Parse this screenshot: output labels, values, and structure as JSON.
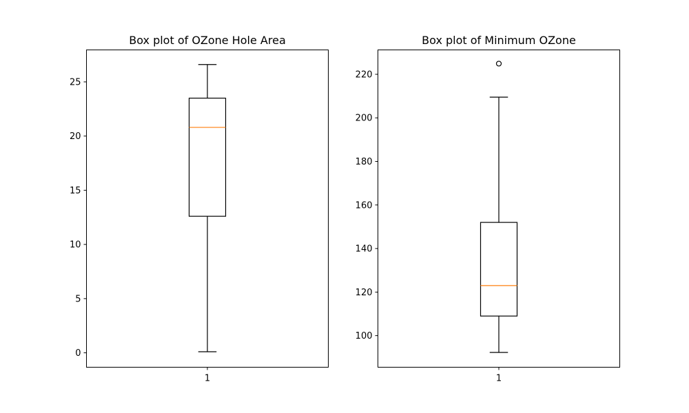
{
  "colors": {
    "median": "#ff7f0e",
    "box": "#000000",
    "flier": "#000000"
  },
  "chart_data": [
    {
      "type": "box",
      "title": "Box plot of OZone Hole Area",
      "xlabel": "",
      "ylabel": "",
      "categories": [
        "1"
      ],
      "ylim": [
        -1.33,
        27.95
      ],
      "yticks": [
        0,
        5,
        10,
        15,
        20,
        25
      ],
      "boxes": [
        {
          "category": "1",
          "whisker_low": 0.1,
          "q1": 12.6,
          "median": 20.8,
          "q3": 23.5,
          "whisker_high": 26.6,
          "fliers": []
        }
      ],
      "grid": false
    },
    {
      "type": "box",
      "title": "Box plot of Minimum OZone",
      "xlabel": "",
      "ylabel": "",
      "categories": [
        "1"
      ],
      "ylim": [
        85.5,
        231.2
      ],
      "yticks": [
        100,
        120,
        140,
        160,
        180,
        200,
        220
      ],
      "boxes": [
        {
          "category": "1",
          "whisker_low": 92.3,
          "q1": 109.0,
          "median": 123.0,
          "q3": 152.0,
          "whisker_high": 209.5,
          "fliers": [
            224.9
          ]
        }
      ],
      "grid": false
    }
  ]
}
